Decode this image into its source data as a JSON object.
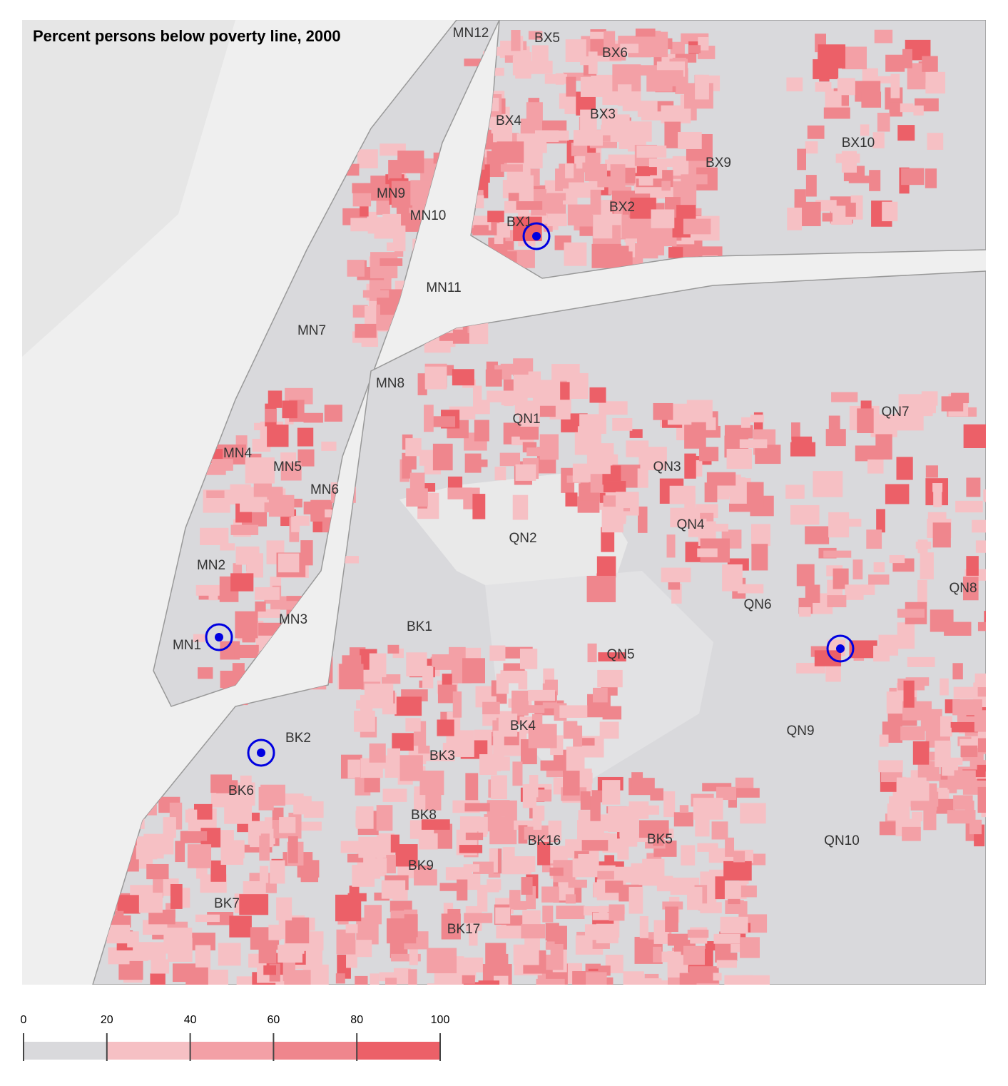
{
  "title": "Percent persons below poverty line, 2000",
  "districts": [
    "MN12",
    "BX5",
    "BX6",
    "BX3",
    "BX4",
    "BX10",
    "BX9",
    "MN9",
    "MN10",
    "BX2",
    "BX1",
    "MN11",
    "MN7",
    "MN8",
    "QN1",
    "QN7",
    "MN4",
    "MN5",
    "QN3",
    "MN6",
    "QN4",
    "QN2",
    "MN2",
    "QN8",
    "QN6",
    "MN3",
    "BK1",
    "MN1",
    "QN5",
    "QN9",
    "BK4",
    "BK2",
    "BK3",
    "BK6",
    "BK8",
    "BK16",
    "BK5",
    "QN10",
    "BK9",
    "BK7",
    "BK17"
  ],
  "legend": {
    "ticks": [
      0,
      20,
      40,
      60,
      80,
      100
    ],
    "colors": [
      "#d9d9dc",
      "#f6c0c4",
      "#f3a0a6",
      "#ef868d",
      "#ec6068"
    ]
  }
}
